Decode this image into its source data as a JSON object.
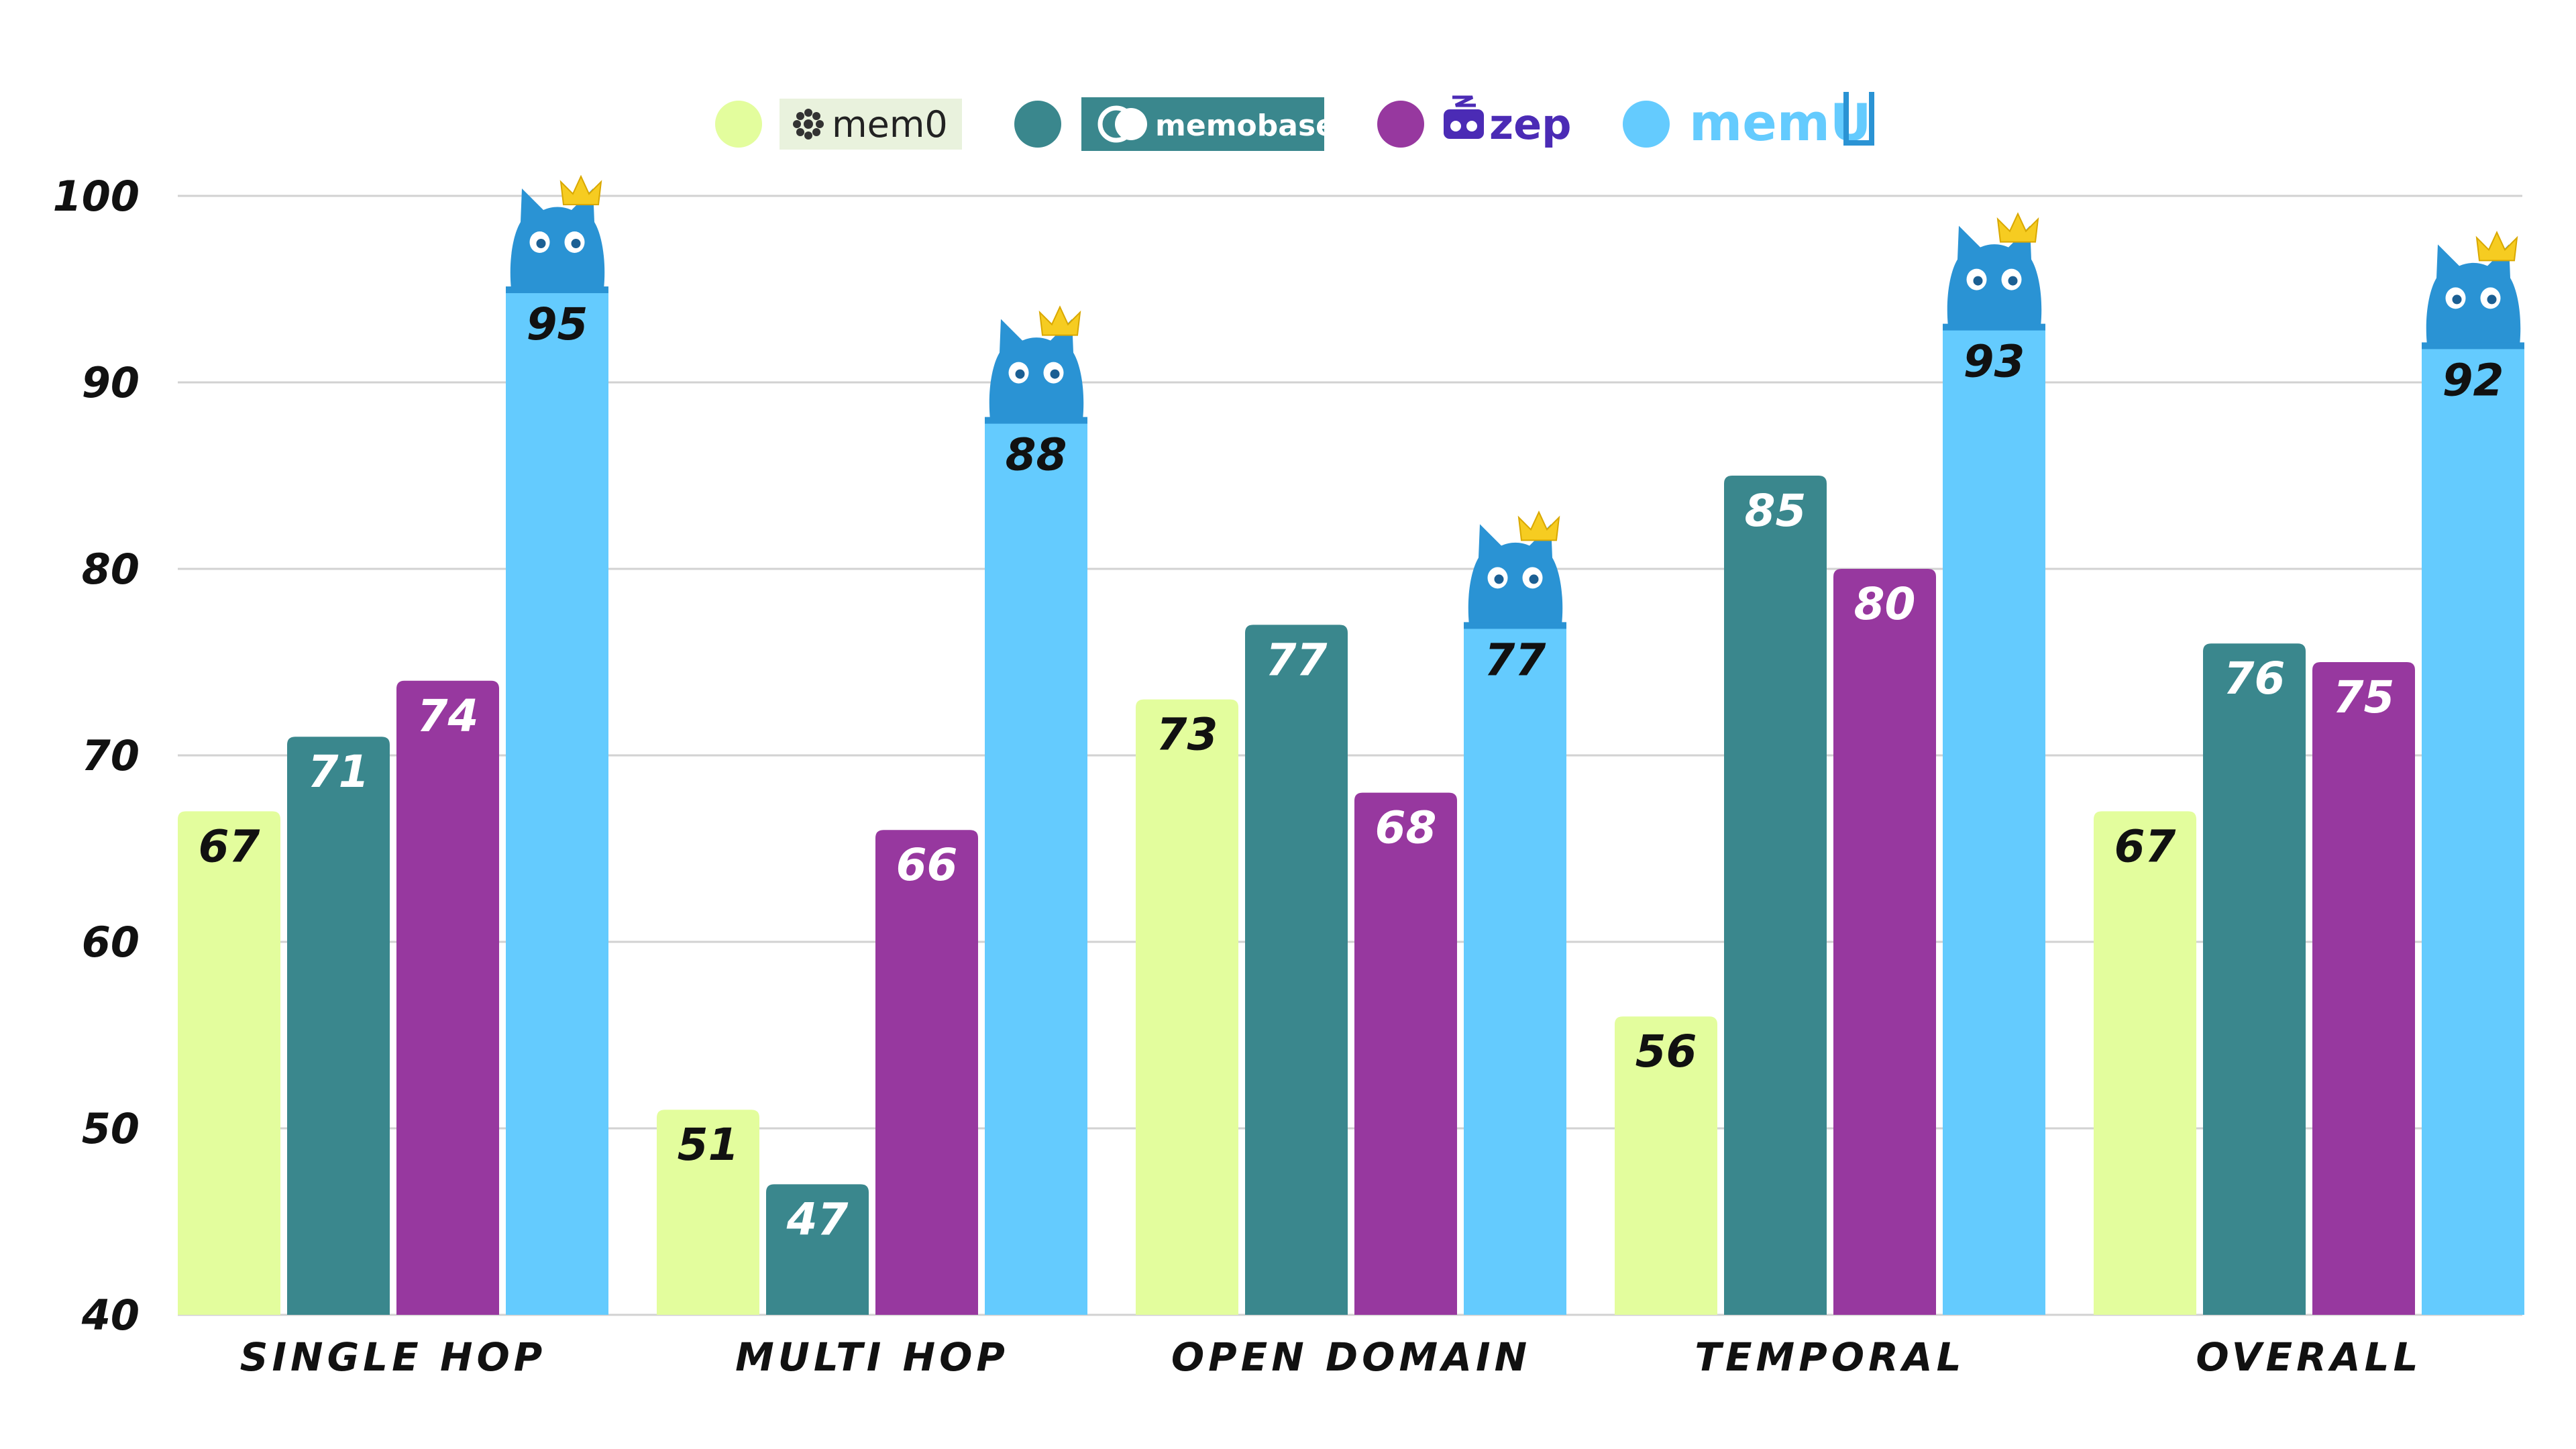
{
  "chart_data": {
    "type": "bar",
    "categories": [
      "SINGLE HOP",
      "MULTI HOP",
      "OPEN DOMAIN",
      "TEMPORAL",
      "OVERALL"
    ],
    "series": [
      {
        "name": "mem0",
        "color": "#e3fd9d",
        "label_color": "#111111",
        "values": [
          67,
          51,
          73,
          56,
          67
        ]
      },
      {
        "name": "memobase",
        "color": "#3a878d",
        "label_color": "#ffffff",
        "values": [
          71,
          47,
          77,
          85,
          76
        ]
      },
      {
        "name": "zep",
        "color": "#97389f",
        "label_color": "#ffffff",
        "values": [
          74,
          66,
          68,
          80,
          75
        ]
      },
      {
        "name": "memU",
        "color": "#64cbfe",
        "label_color": "#111111",
        "values": [
          95,
          88,
          77,
          93,
          92
        ]
      }
    ],
    "y_ticks": [
      "40",
      "50",
      "60",
      "70",
      "80",
      "90",
      "100"
    ],
    "ylim": [
      40,
      100
    ],
    "grid": true,
    "legend_position": "top-center",
    "winner_marker": "cat-with-crown-icon",
    "colors": {
      "cat": "#2a93d4",
      "crown": "#f6cc21",
      "gridline": "#d2d2d2",
      "zep_logo": "#4b2bb5"
    }
  }
}
